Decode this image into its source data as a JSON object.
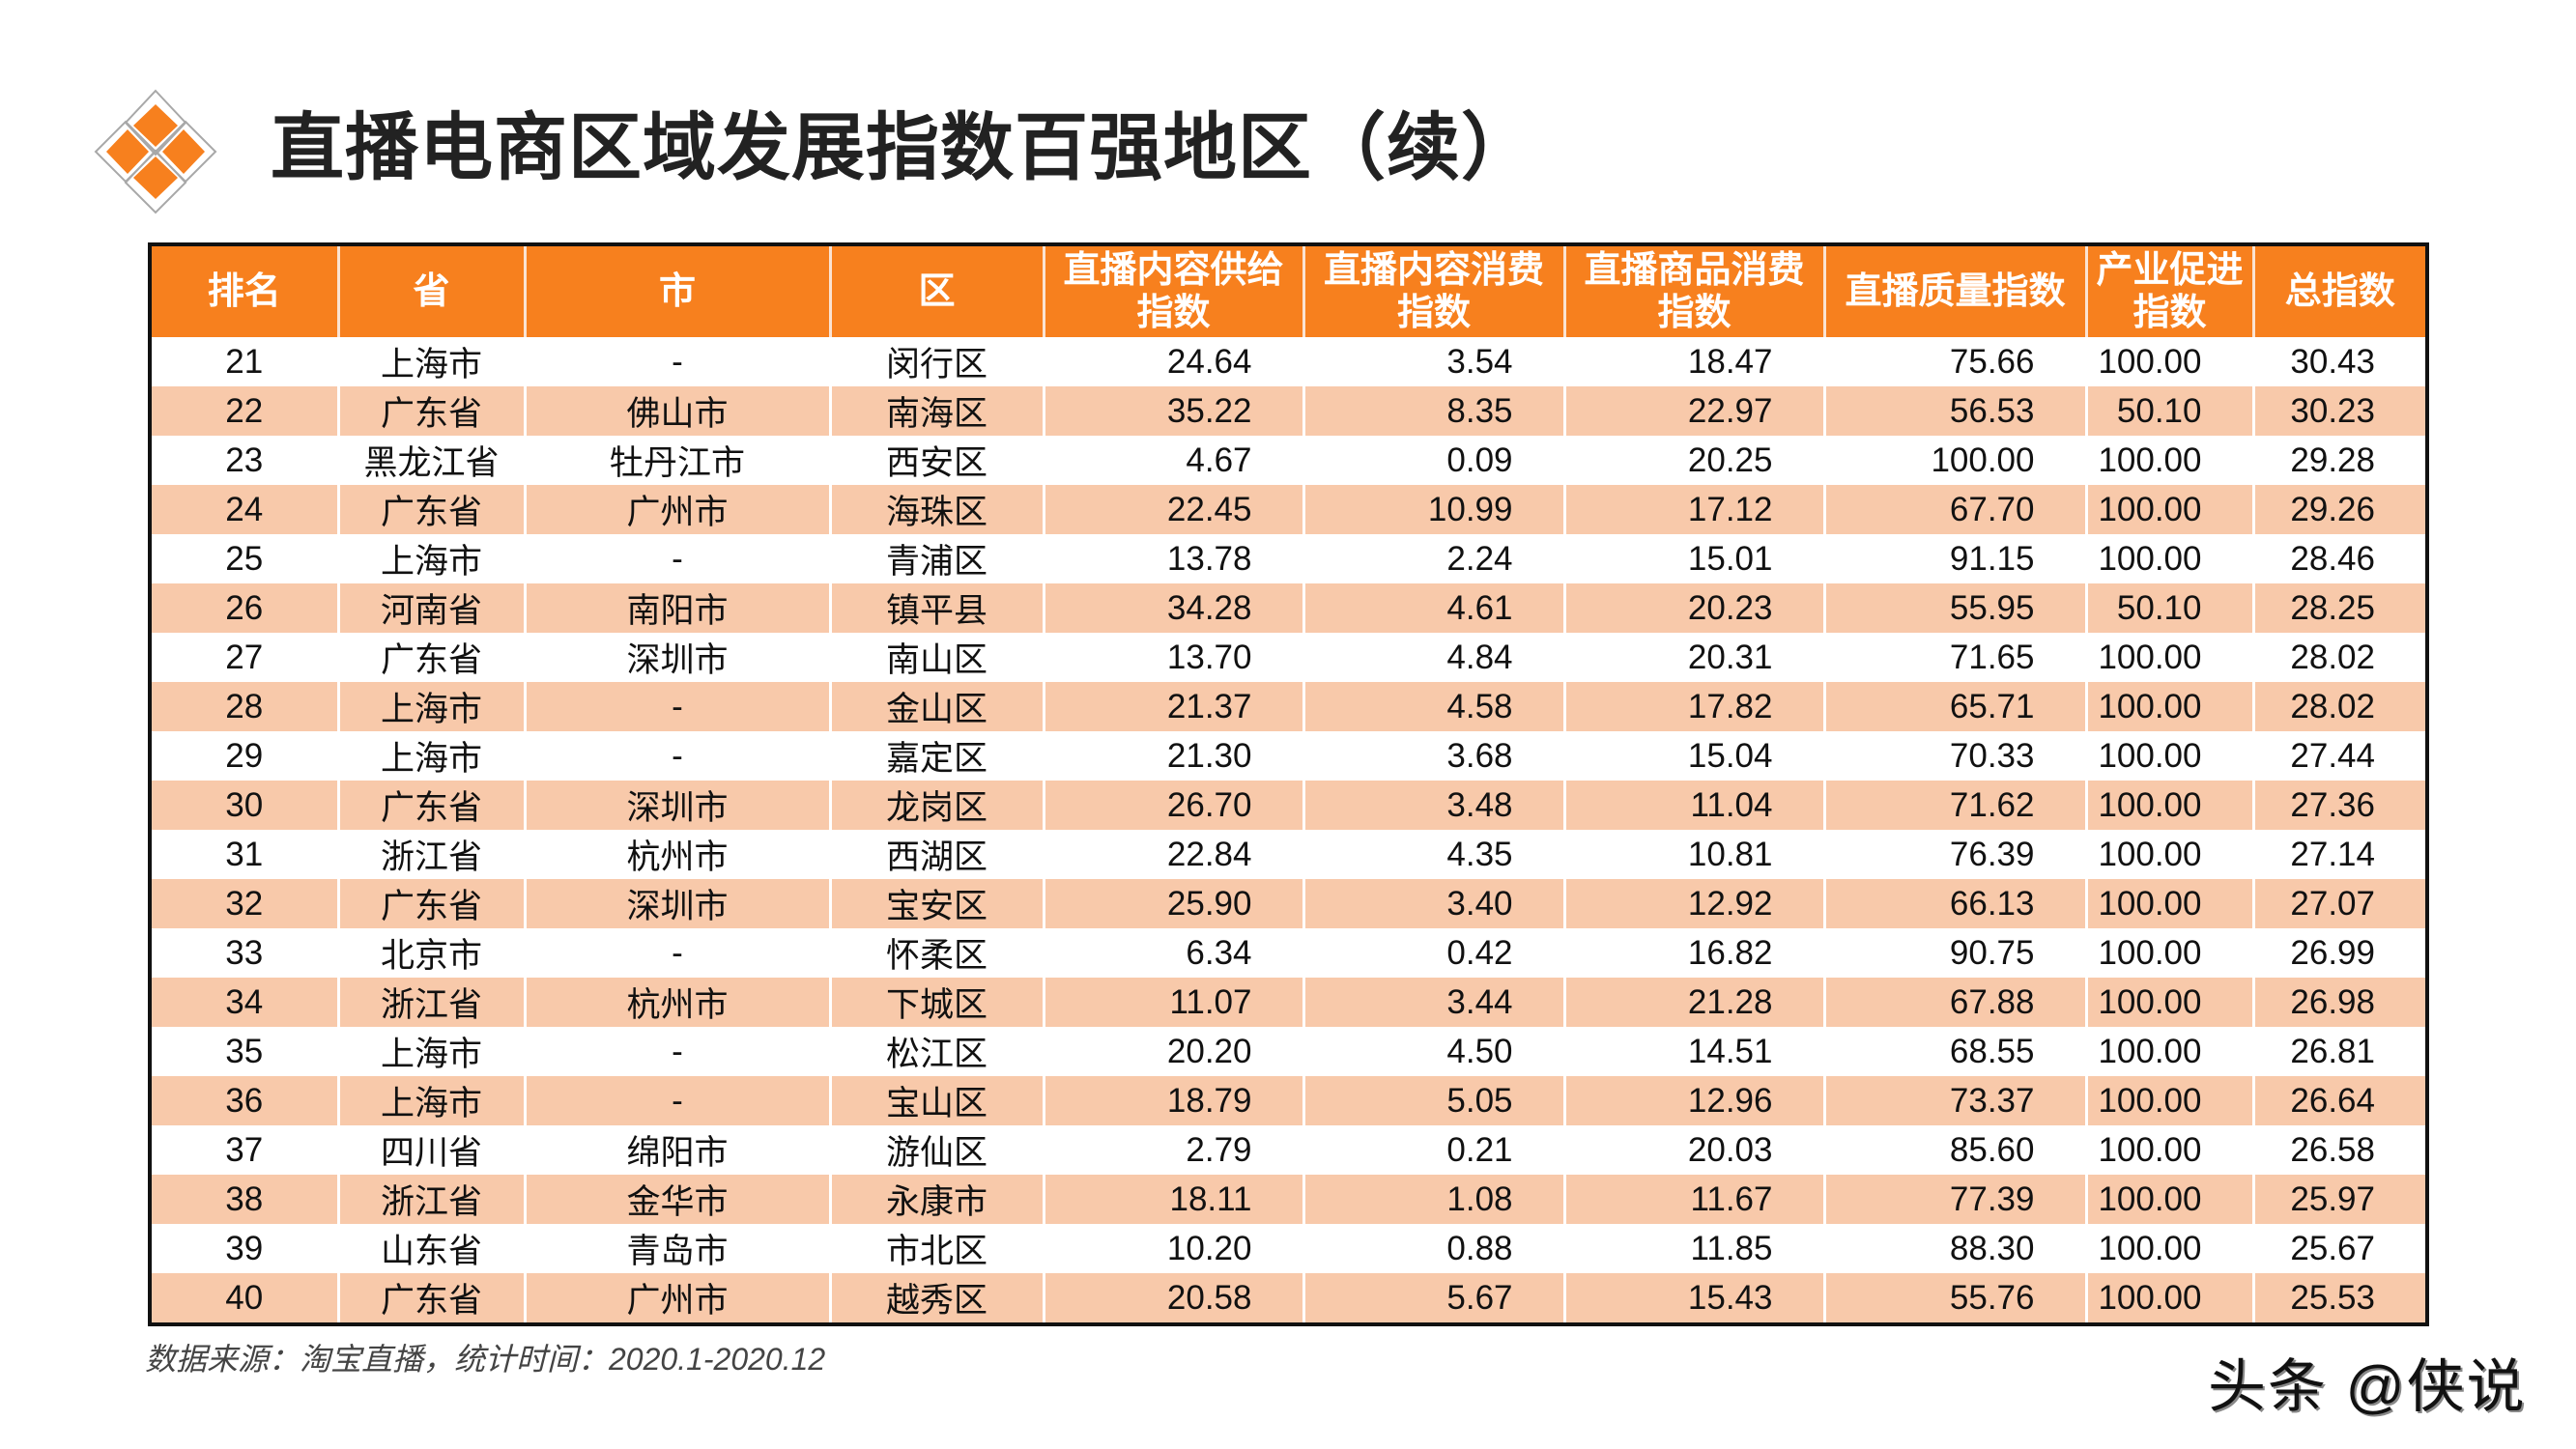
{
  "title": "直播电商区域发展指数百强地区（续）",
  "colors": {
    "header_bg": "#F7801E",
    "alt_row": "#F8C9AA",
    "logo_orange": "#F7801E"
  },
  "logo_icon": "orange-diamond-grid-icon",
  "table": {
    "headers": [
      "排名",
      "省",
      "市",
      "区",
      "直播内容供给\n指数",
      "直播内容消费\n指数",
      "直播商品消费\n指数",
      "直播质量指数",
      "产业促进\n指数",
      "总指数"
    ],
    "header_lines": [
      [
        "排名"
      ],
      [
        "省"
      ],
      [
        "市"
      ],
      [
        "区"
      ],
      [
        "直播内容供给",
        "指数"
      ],
      [
        "直播内容消费",
        "指数"
      ],
      [
        "直播商品消费",
        "指数"
      ],
      [
        "直播质量指数"
      ],
      [
        "产业促进",
        "指数"
      ],
      [
        "总指数"
      ]
    ],
    "rows": [
      [
        "21",
        "上海市",
        "-",
        "闵行区",
        "24.64",
        "3.54",
        "18.47",
        "75.66",
        "100.00",
        "30.43"
      ],
      [
        "22",
        "广东省",
        "佛山市",
        "南海区",
        "35.22",
        "8.35",
        "22.97",
        "56.53",
        "50.10",
        "30.23"
      ],
      [
        "23",
        "黑龙江省",
        "牡丹江市",
        "西安区",
        "4.67",
        "0.09",
        "20.25",
        "100.00",
        "100.00",
        "29.28"
      ],
      [
        "24",
        "广东省",
        "广州市",
        "海珠区",
        "22.45",
        "10.99",
        "17.12",
        "67.70",
        "100.00",
        "29.26"
      ],
      [
        "25",
        "上海市",
        "-",
        "青浦区",
        "13.78",
        "2.24",
        "15.01",
        "91.15",
        "100.00",
        "28.46"
      ],
      [
        "26",
        "河南省",
        "南阳市",
        "镇平县",
        "34.28",
        "4.61",
        "20.23",
        "55.95",
        "50.10",
        "28.25"
      ],
      [
        "27",
        "广东省",
        "深圳市",
        "南山区",
        "13.70",
        "4.84",
        "20.31",
        "71.65",
        "100.00",
        "28.02"
      ],
      [
        "28",
        "上海市",
        "-",
        "金山区",
        "21.37",
        "4.58",
        "17.82",
        "65.71",
        "100.00",
        "28.02"
      ],
      [
        "29",
        "上海市",
        "-",
        "嘉定区",
        "21.30",
        "3.68",
        "15.04",
        "70.33",
        "100.00",
        "27.44"
      ],
      [
        "30",
        "广东省",
        "深圳市",
        "龙岗区",
        "26.70",
        "3.48",
        "11.04",
        "71.62",
        "100.00",
        "27.36"
      ],
      [
        "31",
        "浙江省",
        "杭州市",
        "西湖区",
        "22.84",
        "4.35",
        "10.81",
        "76.39",
        "100.00",
        "27.14"
      ],
      [
        "32",
        "广东省",
        "深圳市",
        "宝安区",
        "25.90",
        "3.40",
        "12.92",
        "66.13",
        "100.00",
        "27.07"
      ],
      [
        "33",
        "北京市",
        "-",
        "怀柔区",
        "6.34",
        "0.42",
        "16.82",
        "90.75",
        "100.00",
        "26.99"
      ],
      [
        "34",
        "浙江省",
        "杭州市",
        "下城区",
        "11.07",
        "3.44",
        "21.28",
        "67.88",
        "100.00",
        "26.98"
      ],
      [
        "35",
        "上海市",
        "-",
        "松江区",
        "20.20",
        "4.50",
        "14.51",
        "68.55",
        "100.00",
        "26.81"
      ],
      [
        "36",
        "上海市",
        "-",
        "宝山区",
        "18.79",
        "5.05",
        "12.96",
        "73.37",
        "100.00",
        "26.64"
      ],
      [
        "37",
        "四川省",
        "绵阳市",
        "游仙区",
        "2.79",
        "0.21",
        "20.03",
        "85.60",
        "100.00",
        "26.58"
      ],
      [
        "38",
        "浙江省",
        "金华市",
        "永康市",
        "18.11",
        "1.08",
        "11.67",
        "77.39",
        "100.00",
        "25.97"
      ],
      [
        "39",
        "山东省",
        "青岛市",
        "市北区",
        "10.20",
        "0.88",
        "11.85",
        "88.30",
        "100.00",
        "25.67"
      ],
      [
        "40",
        "广东省",
        "广州市",
        "越秀区",
        "20.58",
        "5.67",
        "15.43",
        "55.76",
        "100.00",
        "25.53"
      ]
    ]
  },
  "footer": {
    "source": "数据来源：淘宝直播，统计时间：2020.1-2020.12"
  },
  "watermark": "头条 @侠说"
}
